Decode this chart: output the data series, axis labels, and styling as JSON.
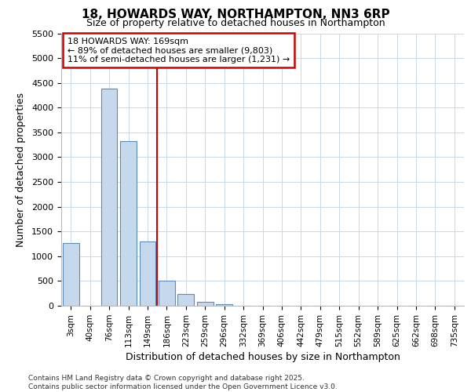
{
  "title_line1": "18, HOWARDS WAY, NORTHAMPTON, NN3 6RP",
  "title_line2": "Size of property relative to detached houses in Northampton",
  "xlabel": "Distribution of detached houses by size in Northampton",
  "ylabel": "Number of detached properties",
  "categories": [
    "3sqm",
    "40sqm",
    "76sqm",
    "113sqm",
    "149sqm",
    "186sqm",
    "223sqm",
    "259sqm",
    "296sqm",
    "332sqm",
    "369sqm",
    "406sqm",
    "442sqm",
    "479sqm",
    "515sqm",
    "552sqm",
    "589sqm",
    "625sqm",
    "662sqm",
    "698sqm",
    "735sqm"
  ],
  "values": [
    1270,
    0,
    4380,
    3320,
    1290,
    500,
    240,
    80,
    30,
    0,
    0,
    0,
    0,
    0,
    0,
    0,
    0,
    0,
    0,
    0,
    0
  ],
  "bar_color": "#c6d9ec",
  "bar_edge_color": "#5b8db8",
  "vline_x": 5,
  "vline_color": "#cc0000",
  "annotation_text": "18 HOWARDS WAY: 169sqm\n← 89% of detached houses are smaller (9,803)\n11% of semi-detached houses are larger (1,231) →",
  "annotation_box_edgecolor": "#cc0000",
  "ylim_max": 5500,
  "yticks": [
    0,
    500,
    1000,
    1500,
    2000,
    2500,
    3000,
    3500,
    4000,
    4500,
    5000,
    5500
  ],
  "footer_line1": "Contains HM Land Registry data © Crown copyright and database right 2025.",
  "footer_line2": "Contains public sector information licensed under the Open Government Licence v3.0.",
  "bg_color": "#ffffff",
  "grid_color": "#c8d8e8"
}
